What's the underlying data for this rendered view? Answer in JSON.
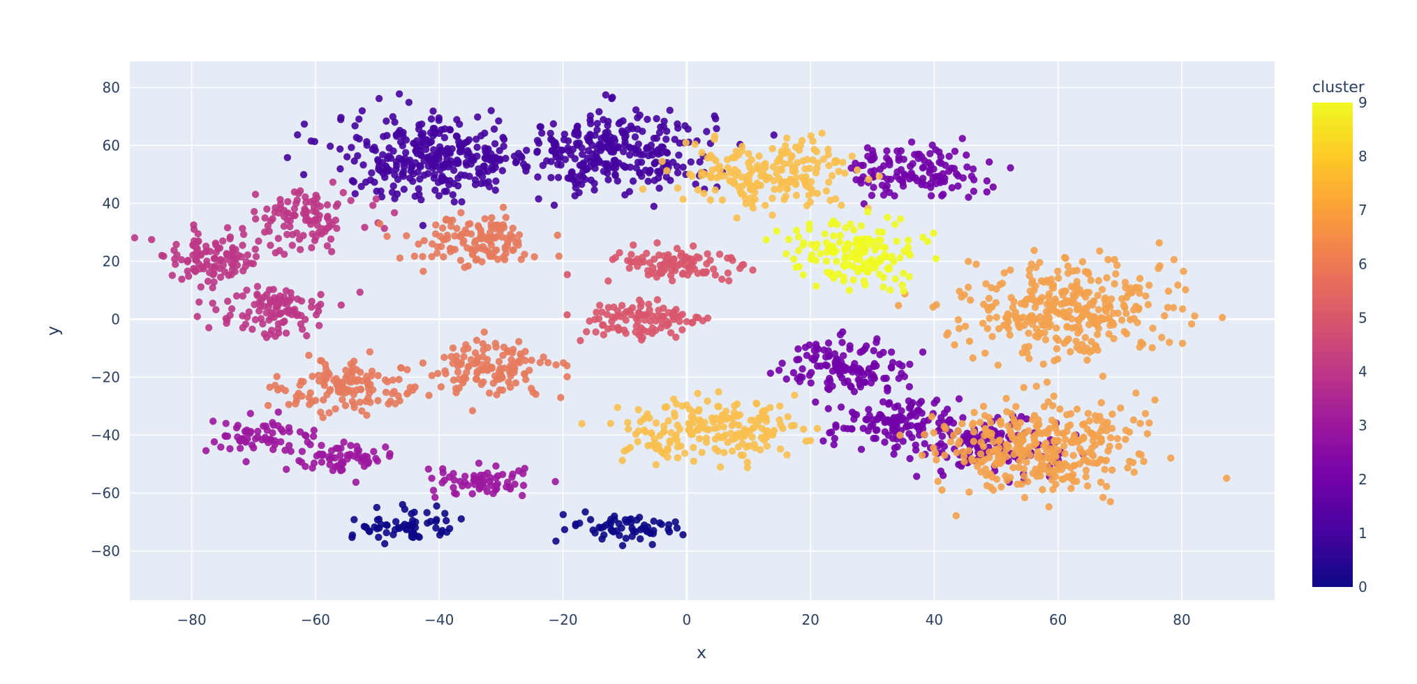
{
  "chart_data": {
    "type": "scatter",
    "title": "",
    "xlabel": "x",
    "ylabel": "y",
    "xlim": [
      -90,
      95
    ],
    "ylim": [
      -97,
      89
    ],
    "x_ticks": [
      -80,
      -60,
      -40,
      -20,
      0,
      20,
      40,
      60,
      80
    ],
    "y_ticks": [
      80,
      60,
      40,
      20,
      0,
      -20,
      -40,
      -60,
      -80
    ],
    "grid": true,
    "legend": "none",
    "colorbar": {
      "title": "cluster",
      "range": [
        0,
        9
      ],
      "ticks": [
        9,
        8,
        7,
        6,
        5,
        4,
        3,
        2,
        1,
        0
      ],
      "colorscale": [
        "#0d0887",
        "#46039f",
        "#7201a8",
        "#9c179e",
        "#bd3786",
        "#d8576b",
        "#ed7953",
        "#fb9f3a",
        "#fdca26",
        "#f0f921"
      ]
    },
    "cluster_colors": {
      "0": "#0d0887",
      "1": "#45039e",
      "2": "#7201a8",
      "3": "#9c179e",
      "4": "#bd3786",
      "5": "#d8576b",
      "6": "#e57a5c",
      "7": "#f3a14c",
      "8": "#f8c04f",
      "9": "#f0f921"
    },
    "points_summary": [
      {
        "cluster": 1,
        "x": -12,
        "y": 58
      },
      {
        "cluster": 1,
        "x": -41,
        "y": 56
      },
      {
        "cluster": 2,
        "x": 37,
        "y": 51
      },
      {
        "cluster": 2,
        "x": 26,
        "y": -16
      },
      {
        "cluster": 2,
        "x": 34,
        "y": -36
      },
      {
        "cluster": 2,
        "x": 49,
        "y": -44
      },
      {
        "cluster": 0,
        "x": -10,
        "y": -72
      },
      {
        "cluster": 0,
        "x": -45,
        "y": -71
      },
      {
        "cluster": 3,
        "x": -33,
        "y": -56
      },
      {
        "cluster": 3,
        "x": -69,
        "y": -41
      },
      {
        "cluster": 3,
        "x": -56,
        "y": -48
      },
      {
        "cluster": 4,
        "x": -61,
        "y": 35
      },
      {
        "cluster": 4,
        "x": -67,
        "y": 3
      },
      {
        "cluster": 4,
        "x": -77,
        "y": 21
      },
      {
        "cluster": 5,
        "x": -2,
        "y": 19
      },
      {
        "cluster": 5,
        "x": -7,
        "y": -1
      },
      {
        "cluster": 6,
        "x": -35,
        "y": 27
      },
      {
        "cluster": 6,
        "x": -32,
        "y": -17
      },
      {
        "cluster": 6,
        "x": -54,
        "y": -24
      },
      {
        "cluster": 7,
        "x": 61,
        "y": 4
      },
      {
        "cluster": 7,
        "x": 57,
        "y": -44
      },
      {
        "cluster": 8,
        "x": 3,
        "y": -38
      },
      {
        "cluster": 8,
        "x": 14,
        "y": 50
      },
      {
        "cluster": 9,
        "x": 28,
        "y": 23
      }
    ]
  }
}
